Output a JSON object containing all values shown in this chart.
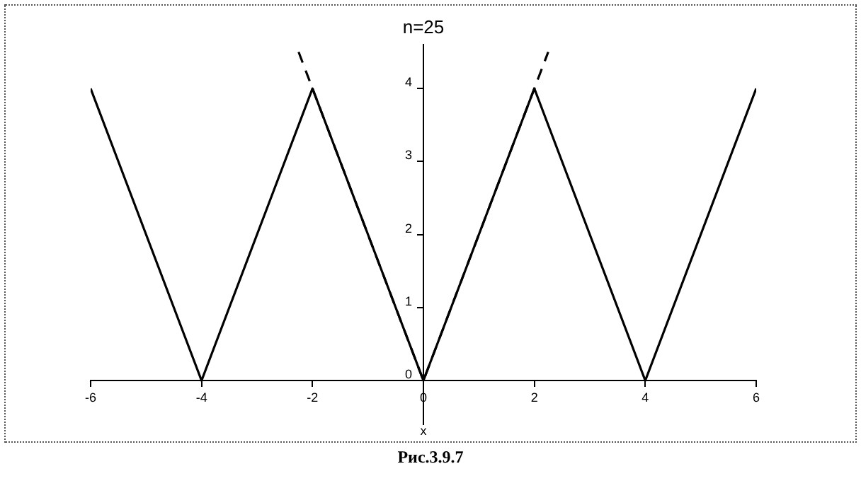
{
  "chart_data": {
    "type": "line",
    "title": "n=25",
    "xlabel": "x",
    "annotations": [
      "Рис.3.9.7"
    ],
    "xlim": [
      -6,
      6
    ],
    "ylim": [
      -0.6,
      4.6
    ],
    "xticks": [
      -6,
      -4,
      -2,
      0,
      2,
      4,
      6
    ],
    "yticks": [
      0,
      1,
      2,
      3,
      4
    ],
    "grid": false,
    "legend": false,
    "marker": "none",
    "series": [
      {
        "color": "#000000",
        "x": [
          -6,
          -4,
          -2,
          0,
          2,
          4,
          6
        ],
        "values": [
          4,
          0,
          4,
          0,
          4,
          0,
          4
        ],
        "line_style": "solid"
      },
      {
        "color": "#000000",
        "x": [
          -2.25,
          0,
          2.25
        ],
        "values": [
          4.5,
          0,
          4.5
        ],
        "line_style": "dashed"
      }
    ]
  }
}
